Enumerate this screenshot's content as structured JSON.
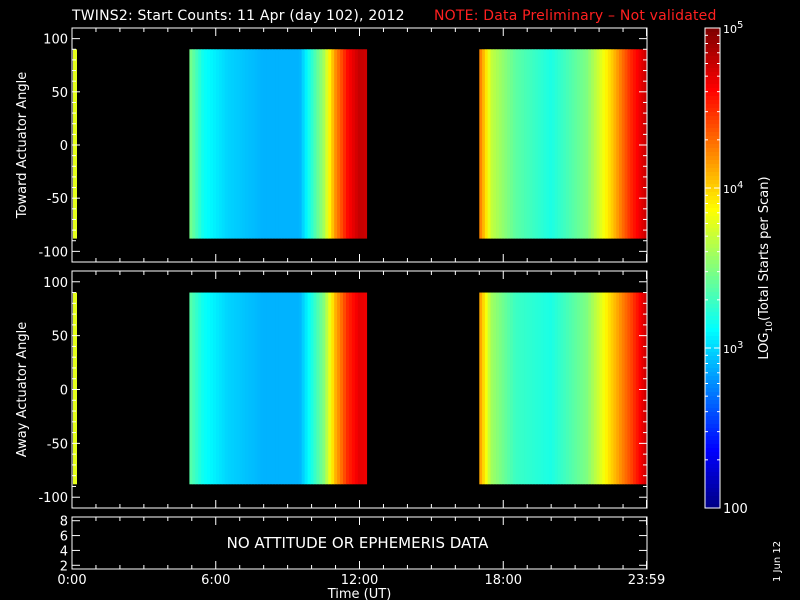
{
  "title": {
    "main": "TWINS2: Start Counts: 11 Apr (day 102), 2012",
    "note": "NOTE: Data Preliminary – Not validated",
    "note_color": "#ff2020"
  },
  "date_stamp": "1 Jun 12",
  "colorbar": {
    "label_prefix": "LOG",
    "label_sub": "10",
    "label_suffix": "(Total Starts per Scan)",
    "ticks": [
      {
        "base": "10",
        "exp": "5",
        "value": 100000
      },
      {
        "base": "10",
        "exp": "4",
        "value": 10000
      },
      {
        "base": "10",
        "exp": "3",
        "value": 1000
      },
      {
        "text": "100",
        "value": 100
      }
    ],
    "log_range": [
      2,
      5
    ],
    "colormap": "jet"
  },
  "chart_data": [
    {
      "type": "heatmap",
      "ylabel": "Toward Actuator Angle",
      "ylim": [
        -110,
        110
      ],
      "yticks": [
        "100",
        "50",
        "0",
        "-50",
        "-100"
      ],
      "ytick_values": [
        100,
        50,
        0,
        -50,
        -100
      ],
      "xlim": [
        0,
        24
      ],
      "data_y_range": [
        -88,
        90
      ],
      "data_blocks": [
        [
          4.9,
          12.3
        ],
        [
          17.0,
          24.0
        ]
      ],
      "log_counts_profile": [
        {
          "x": 4.9,
          "v": 3.5
        },
        {
          "x": 5.5,
          "v": 3.15
        },
        {
          "x": 6.5,
          "v": 3.0
        },
        {
          "x": 8.0,
          "v": 2.9
        },
        {
          "x": 9.5,
          "v": 2.9
        },
        {
          "x": 10.5,
          "v": 3.6
        },
        {
          "x": 11.0,
          "v": 4.2
        },
        {
          "x": 11.5,
          "v": 4.6
        },
        {
          "x": 12.0,
          "v": 4.8
        },
        {
          "x": 17.0,
          "v": 4.3
        },
        {
          "x": 17.5,
          "v": 3.7
        },
        {
          "x": 18.5,
          "v": 3.4
        },
        {
          "x": 20.0,
          "v": 3.2
        },
        {
          "x": 21.5,
          "v": 3.5
        },
        {
          "x": 22.5,
          "v": 4.0
        },
        {
          "x": 23.3,
          "v": 4.5
        },
        {
          "x": 24.0,
          "v": 4.8
        }
      ]
    },
    {
      "type": "heatmap",
      "ylabel": "Away Actuator Angle",
      "ylim": [
        -110,
        110
      ],
      "yticks": [
        "100",
        "50",
        "0",
        "-50",
        "-100"
      ],
      "ytick_values": [
        100,
        50,
        0,
        -50,
        -100
      ],
      "xlim": [
        0,
        24
      ],
      "data_y_range": [
        -88,
        90
      ],
      "data_blocks": [
        [
          4.9,
          12.3
        ],
        [
          17.0,
          24.0
        ]
      ],
      "log_counts_profile": [
        {
          "x": 4.9,
          "v": 3.4
        },
        {
          "x": 5.5,
          "v": 3.15
        },
        {
          "x": 6.5,
          "v": 3.0
        },
        {
          "x": 8.0,
          "v": 2.9
        },
        {
          "x": 9.5,
          "v": 2.9
        },
        {
          "x": 10.5,
          "v": 3.5
        },
        {
          "x": 11.0,
          "v": 4.1
        },
        {
          "x": 11.5,
          "v": 4.5
        },
        {
          "x": 12.0,
          "v": 4.7
        },
        {
          "x": 17.0,
          "v": 4.2
        },
        {
          "x": 17.5,
          "v": 3.6
        },
        {
          "x": 18.5,
          "v": 3.3
        },
        {
          "x": 20.0,
          "v": 3.2
        },
        {
          "x": 21.5,
          "v": 3.5
        },
        {
          "x": 22.5,
          "v": 4.0
        },
        {
          "x": 23.3,
          "v": 4.4
        },
        {
          "x": 24.0,
          "v": 4.8
        }
      ]
    },
    {
      "type": "line",
      "ylim": [
        1.5,
        8.5
      ],
      "yticks": [
        "8",
        "6",
        "4",
        "2"
      ],
      "ytick_values": [
        8,
        6,
        4,
        2
      ],
      "xlim": [
        0,
        24
      ],
      "message": "NO ATTITUDE OR EPHEMERIS DATA",
      "xlabel": "Time (UT)",
      "xticks": [
        "0:00",
        "6:00",
        "12:00",
        "18:00",
        "23:59"
      ],
      "xtick_values": [
        0,
        6,
        12,
        18,
        23.98
      ]
    }
  ]
}
